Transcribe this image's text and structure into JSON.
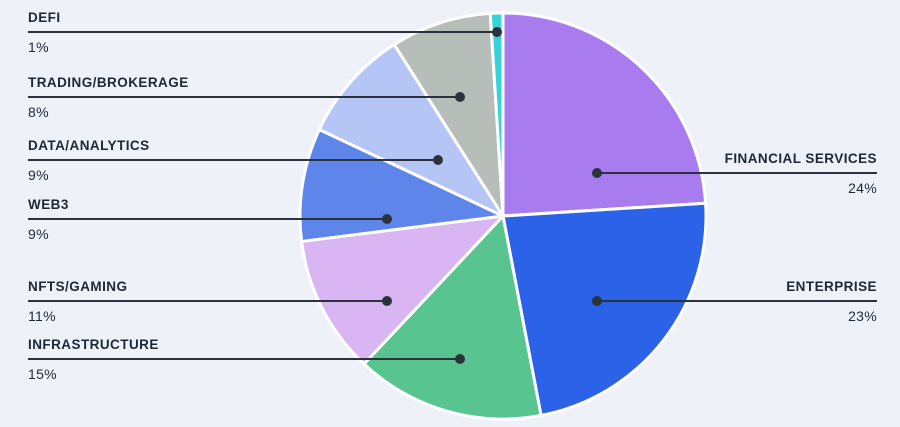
{
  "chart_data": {
    "type": "pie",
    "title": "",
    "units": "%",
    "start_angle_deg": 0,
    "direction": "clockwise",
    "legend_position": "callouts-left-right",
    "background_color": "#eef2f8",
    "leader_line_color": "#2c323c",
    "label_text_color": "#1e2733",
    "slice_separator_color": "#ffffff",
    "segments": [
      {
        "label": "FINANCIAL SERVICES",
        "value": 24,
        "display": "24%",
        "color": "#a87cef"
      },
      {
        "label": "ENTERPRISE",
        "value": 23,
        "display": "23%",
        "color": "#2b62e8"
      },
      {
        "label": "INFRASTRUCTURE",
        "value": 15,
        "display": "15%",
        "color": "#58c591"
      },
      {
        "label": "NFTS/GAMING",
        "value": 11,
        "display": "11%",
        "color": "#d9b5f3"
      },
      {
        "label": "WEB3",
        "value": 9,
        "display": "9%",
        "color": "#5e86ea"
      },
      {
        "label": "DATA/ANALYTICS",
        "value": 9,
        "display": "9%",
        "color": "#b5c6f6"
      },
      {
        "label": "TRADING/BROKERAGE",
        "value": 8,
        "display": "8%",
        "color": "#b7beb9"
      },
      {
        "label": "DEFI",
        "value": 1,
        "display": "1%",
        "color": "#38d3da"
      }
    ]
  }
}
